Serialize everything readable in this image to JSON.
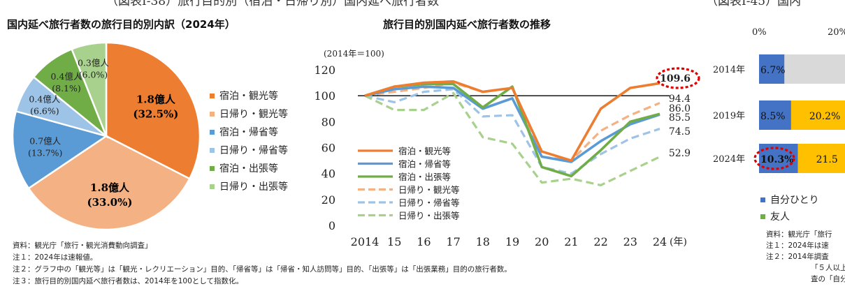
{
  "header": {
    "cut_left": "（図表Ⅰ-38）旅行目的別（宿泊・日帰り別）国内延べ旅行者数",
    "cut_right": "（図表Ⅰ-45）国内"
  },
  "colors": {
    "shuku_kanko": "#ed7d31",
    "higaeri_kanko": "#f4b183",
    "shuku_kisei": "#5b9bd5",
    "higaeri_kisei": "#9dc3e6",
    "shuku_shutcho": "#70ad47",
    "higaeri_shutcho": "#a9d18e",
    "red_dot": "#e00000",
    "bar_gray": "#d9d9d9",
    "bar_blue": "#4472c4",
    "bar_yellow": "#ffc000"
  },
  "chart_data": [
    {
      "type": "pie",
      "title": "国内延べ旅行者数の旅行目的別内訳（2024年）",
      "slices": [
        {
          "name": "宿泊・観光等",
          "label": "1.8億人",
          "pct_label": "(32.5%)",
          "value": 32.5,
          "color": "#ed7d31"
        },
        {
          "name": "日帰り・観光等",
          "label": "1.8億人",
          "pct_label": "(33.0%)",
          "value": 33.0,
          "color": "#f4b183"
        },
        {
          "name": "宿泊・帰省等",
          "label": "0.7億人",
          "pct_label": "(13.7%)",
          "value": 13.7,
          "color": "#5b9bd5"
        },
        {
          "name": "日帰り・帰省等",
          "label": "0.4億人",
          "pct_label": "(6.6%)",
          "value": 6.6,
          "color": "#9dc3e6"
        },
        {
          "name": "宿泊・出張等",
          "label": "0.4億人",
          "pct_label": "(8.1%)",
          "value": 8.1,
          "color": "#70ad47"
        },
        {
          "name": "日帰り・出張等",
          "label": "0.3億人",
          "pct_label": "(6.0%)",
          "value": 6.0,
          "color": "#a9d18e"
        }
      ],
      "legend": [
        "宿泊・観光等",
        "日帰り・観光等",
        "宿泊・帰省等",
        "日帰り・帰省等",
        "宿泊・出張等",
        "日帰り・出張等"
      ]
    },
    {
      "type": "line",
      "title": "旅行目的別国内延べ旅行者数の推移",
      "unit_note": "(2014年＝100)",
      "x": [
        2014,
        2015,
        2016,
        2017,
        2018,
        2019,
        2020,
        2021,
        2022,
        2023,
        2024
      ],
      "xticks": [
        "2014",
        "15",
        "16",
        "17",
        "18",
        "19",
        "20",
        "21",
        "22",
        "23",
        "24"
      ],
      "xunit": "(年)",
      "ylim": [
        0,
        120
      ],
      "yticks": [
        0,
        20,
        40,
        60,
        80,
        100,
        120
      ],
      "reference_line": 100,
      "series": [
        {
          "name": "宿泊・観光等",
          "dashed": false,
          "color": "#ed7d31",
          "values": [
            100,
            107,
            110,
            111,
            103,
            106,
            57,
            50,
            90,
            106,
            109.6
          ]
        },
        {
          "name": "宿泊・帰省等",
          "dashed": false,
          "color": "#5b9bd5",
          "values": [
            100,
            105,
            107,
            106,
            90,
            98,
            53,
            49,
            65,
            78,
            85.5
          ]
        },
        {
          "name": "宿泊・出張等",
          "dashed": false,
          "color": "#70ad47",
          "values": [
            100,
            107,
            109,
            109,
            91,
            107,
            45,
            38,
            58,
            80,
            86.0
          ]
        },
        {
          "name": "日帰り・観光等",
          "dashed": true,
          "color": "#f4b183",
          "values": [
            100,
            103,
            106,
            110,
            103,
            106,
            53,
            50,
            73,
            85,
            94.4
          ]
        },
        {
          "name": "日帰り・帰省等",
          "dashed": true,
          "color": "#9dc3e6",
          "values": [
            100,
            95,
            103,
            105,
            84,
            85,
            45,
            40,
            55,
            67,
            74.5
          ]
        },
        {
          "name": "日帰り・出張等",
          "dashed": true,
          "color": "#a9d18e",
          "values": [
            100,
            89,
            89,
            102,
            68,
            63,
            33,
            36,
            31,
            42,
            52.9
          ]
        }
      ],
      "end_labels": [
        "109.6",
        "94.4",
        "86.0",
        "85.5",
        "74.5",
        "52.9"
      ]
    },
    {
      "type": "bar",
      "title": "",
      "axis_ticks": [
        "0%",
        "20%"
      ],
      "categories": [
        "2014年",
        "2019年",
        "2024年"
      ],
      "series": [
        {
          "name": "自分ひとり",
          "color": "#4472c4",
          "values": [
            6.7,
            8.5,
            10.3
          ],
          "labels": [
            "6.7%",
            "8.5%",
            "10.3%"
          ]
        },
        {
          "name": "友人",
          "color": "#ffc000",
          "values": [
            null,
            20.2,
            21.5
          ],
          "labels": [
            "",
            "20.2%",
            "21.5"
          ]
        }
      ],
      "legend": [
        "自分ひとり",
        "友人"
      ]
    }
  ],
  "notes_left": [
    "資料：観光庁「旅行・観光消費動向調査」",
    "注１：2024年は速報値。",
    "注２：グラフ中の「観光等」は「観光・レクリエーション」目的、「帰省等」は「帰省・知人訪問等」目的、「出張等」は「出張業務」目的の旅行者数。",
    "注３：旅行目的別国内延べ旅行者数は、2014年を100として指数化。"
  ],
  "notes_right": [
    "資料：観光庁「旅行",
    "注１：2024年は速",
    "注２：2014年調査",
    "「５人以上",
    "査の「自分ひ"
  ]
}
